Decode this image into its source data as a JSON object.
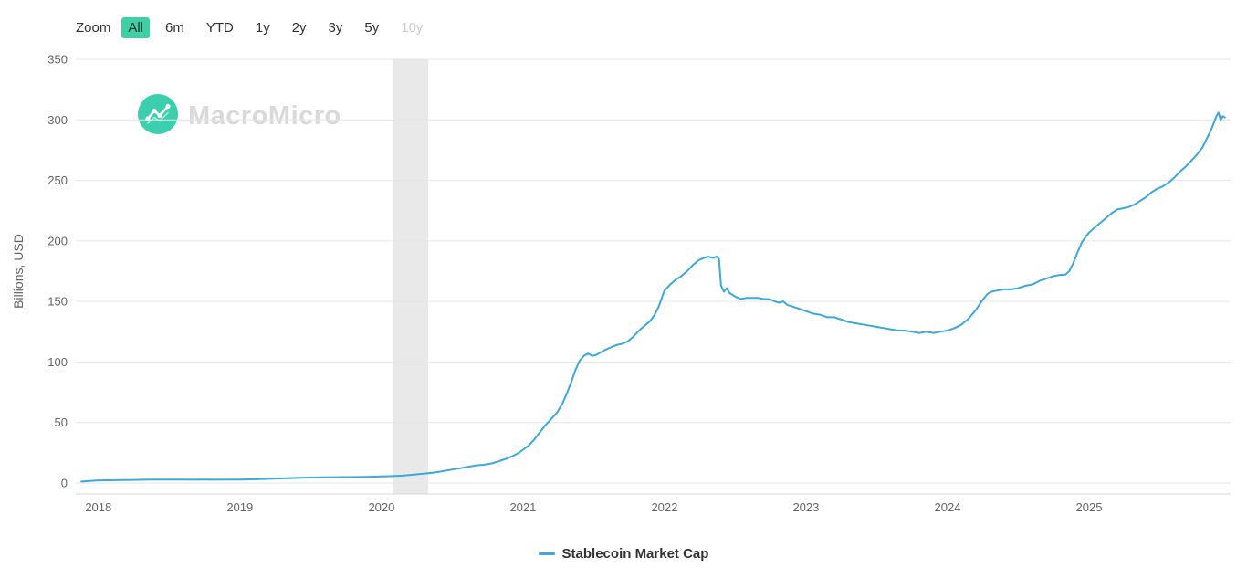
{
  "toolbar": {
    "zoom_label": "Zoom",
    "buttons": [
      {
        "label": "All",
        "state": "selected"
      },
      {
        "label": "6m",
        "state": "normal"
      },
      {
        "label": "YTD",
        "state": "normal"
      },
      {
        "label": "1y",
        "state": "normal"
      },
      {
        "label": "2y",
        "state": "normal"
      },
      {
        "label": "3y",
        "state": "normal"
      },
      {
        "label": "5y",
        "state": "normal"
      },
      {
        "label": "10y",
        "state": "disabled"
      }
    ],
    "selected_button_color": "#3ed0a4"
  },
  "watermark": {
    "brand": "MacroMicro",
    "logo_color": "#3bcfad",
    "text_color": "#d9d9d9"
  },
  "chart_data": {
    "type": "line",
    "title": "",
    "xlabel": "",
    "ylabel": "Billions, USD",
    "xticks": [
      2018,
      2019,
      2020,
      2021,
      2022,
      2023,
      2024,
      2025
    ],
    "yticks": [
      0,
      50,
      100,
      150,
      200,
      250,
      300,
      350
    ],
    "xlim": [
      2017.84,
      2026.0
    ],
    "ylim": [
      0,
      350
    ],
    "grid": true,
    "grid_color": "#e6e6e6",
    "axis_line_color": "#d8d8d8",
    "tick_label_color": "#666666",
    "legend_position": "bottom-center",
    "band": {
      "from": 2020.08,
      "to": 2020.33,
      "color": "#e9e9e9",
      "note": "recession-shading"
    },
    "series": [
      {
        "name": "Stablecoin Market Cap",
        "color": "#3ca8dc",
        "points": [
          [
            2017.88,
            1.2
          ],
          [
            2018.0,
            2.2
          ],
          [
            2018.08,
            2.3
          ],
          [
            2018.17,
            2.4
          ],
          [
            2018.25,
            2.6
          ],
          [
            2018.33,
            2.7
          ],
          [
            2018.42,
            2.8
          ],
          [
            2018.5,
            2.8
          ],
          [
            2018.58,
            2.8
          ],
          [
            2018.67,
            2.7
          ],
          [
            2018.75,
            2.8
          ],
          [
            2018.83,
            2.7
          ],
          [
            2018.92,
            2.8
          ],
          [
            2019.0,
            2.8
          ],
          [
            2019.08,
            3.0
          ],
          [
            2019.17,
            3.3
          ],
          [
            2019.25,
            3.7
          ],
          [
            2019.33,
            4.0
          ],
          [
            2019.42,
            4.3
          ],
          [
            2019.5,
            4.5
          ],
          [
            2019.58,
            4.7
          ],
          [
            2019.67,
            4.8
          ],
          [
            2019.75,
            4.9
          ],
          [
            2019.83,
            5.0
          ],
          [
            2019.92,
            5.2
          ],
          [
            2020.0,
            5.4
          ],
          [
            2020.08,
            5.7
          ],
          [
            2020.15,
            6.1
          ],
          [
            2020.22,
            6.9
          ],
          [
            2020.3,
            7.7
          ],
          [
            2020.36,
            8.5
          ],
          [
            2020.42,
            9.5
          ],
          [
            2020.5,
            11.2
          ],
          [
            2020.56,
            12.3
          ],
          [
            2020.62,
            13.6
          ],
          [
            2020.67,
            14.6
          ],
          [
            2020.72,
            15.1
          ],
          [
            2020.78,
            16.2
          ],
          [
            2020.83,
            18.0
          ],
          [
            2020.88,
            20.0
          ],
          [
            2020.93,
            22.5
          ],
          [
            2020.97,
            25.0
          ],
          [
            2021.0,
            27.5
          ],
          [
            2021.04,
            31
          ],
          [
            2021.08,
            36
          ],
          [
            2021.12,
            42
          ],
          [
            2021.16,
            48
          ],
          [
            2021.2,
            53
          ],
          [
            2021.24,
            58
          ],
          [
            2021.28,
            66
          ],
          [
            2021.31,
            74
          ],
          [
            2021.34,
            83
          ],
          [
            2021.37,
            93
          ],
          [
            2021.4,
            101
          ],
          [
            2021.43,
            105
          ],
          [
            2021.46,
            107
          ],
          [
            2021.49,
            105
          ],
          [
            2021.52,
            106
          ],
          [
            2021.55,
            108
          ],
          [
            2021.58,
            110
          ],
          [
            2021.62,
            112
          ],
          [
            2021.66,
            114
          ],
          [
            2021.7,
            115
          ],
          [
            2021.74,
            117
          ],
          [
            2021.78,
            121
          ],
          [
            2021.82,
            126
          ],
          [
            2021.86,
            130
          ],
          [
            2021.9,
            134
          ],
          [
            2021.93,
            139
          ],
          [
            2021.96,
            146
          ],
          [
            2022.0,
            159
          ],
          [
            2022.04,
            164
          ],
          [
            2022.08,
            168
          ],
          [
            2022.12,
            171
          ],
          [
            2022.16,
            175
          ],
          [
            2022.2,
            180
          ],
          [
            2022.24,
            184
          ],
          [
            2022.28,
            186
          ],
          [
            2022.31,
            187
          ],
          [
            2022.34,
            186
          ],
          [
            2022.37,
            187
          ],
          [
            2022.385,
            185
          ],
          [
            2022.4,
            163
          ],
          [
            2022.42,
            158
          ],
          [
            2022.44,
            161
          ],
          [
            2022.46,
            157
          ],
          [
            2022.5,
            154
          ],
          [
            2022.54,
            152
          ],
          [
            2022.58,
            153
          ],
          [
            2022.62,
            153
          ],
          [
            2022.66,
            153
          ],
          [
            2022.7,
            152
          ],
          [
            2022.74,
            152
          ],
          [
            2022.78,
            150
          ],
          [
            2022.81,
            149
          ],
          [
            2022.84,
            150
          ],
          [
            2022.87,
            147
          ],
          [
            2022.9,
            146
          ],
          [
            2022.95,
            144
          ],
          [
            2023.0,
            142
          ],
          [
            2023.05,
            140
          ],
          [
            2023.1,
            139
          ],
          [
            2023.15,
            137
          ],
          [
            2023.2,
            137
          ],
          [
            2023.25,
            135
          ],
          [
            2023.3,
            133
          ],
          [
            2023.35,
            132
          ],
          [
            2023.4,
            131
          ],
          [
            2023.45,
            130
          ],
          [
            2023.5,
            129
          ],
          [
            2023.55,
            128
          ],
          [
            2023.6,
            127
          ],
          [
            2023.65,
            126
          ],
          [
            2023.7,
            126
          ],
          [
            2023.75,
            125
          ],
          [
            2023.8,
            124
          ],
          [
            2023.85,
            125
          ],
          [
            2023.9,
            124
          ],
          [
            2023.95,
            125
          ],
          [
            2024.0,
            126
          ],
          [
            2024.05,
            128
          ],
          [
            2024.1,
            131
          ],
          [
            2024.15,
            136
          ],
          [
            2024.2,
            143
          ],
          [
            2024.24,
            150
          ],
          [
            2024.28,
            156
          ],
          [
            2024.31,
            158
          ],
          [
            2024.35,
            159
          ],
          [
            2024.4,
            160
          ],
          [
            2024.45,
            160
          ],
          [
            2024.5,
            161
          ],
          [
            2024.55,
            163
          ],
          [
            2024.6,
            164
          ],
          [
            2024.65,
            167
          ],
          [
            2024.7,
            169
          ],
          [
            2024.75,
            171
          ],
          [
            2024.8,
            172
          ],
          [
            2024.83,
            172
          ],
          [
            2024.86,
            175
          ],
          [
            2024.89,
            182
          ],
          [
            2024.92,
            191
          ],
          [
            2024.95,
            199
          ],
          [
            2024.98,
            204
          ],
          [
            2025.0,
            207
          ],
          [
            2025.04,
            211
          ],
          [
            2025.08,
            215
          ],
          [
            2025.12,
            219
          ],
          [
            2025.16,
            223
          ],
          [
            2025.2,
            226
          ],
          [
            2025.24,
            227
          ],
          [
            2025.28,
            228
          ],
          [
            2025.32,
            230
          ],
          [
            2025.36,
            233
          ],
          [
            2025.4,
            236
          ],
          [
            2025.44,
            240
          ],
          [
            2025.48,
            243
          ],
          [
            2025.52,
            245
          ],
          [
            2025.56,
            248
          ],
          [
            2025.6,
            252
          ],
          [
            2025.64,
            257
          ],
          [
            2025.68,
            261
          ],
          [
            2025.72,
            266
          ],
          [
            2025.76,
            271
          ],
          [
            2025.8,
            277
          ],
          [
            2025.83,
            284
          ],
          [
            2025.86,
            291
          ],
          [
            2025.88,
            297
          ],
          [
            2025.9,
            303
          ],
          [
            2025.915,
            306
          ],
          [
            2025.93,
            300
          ],
          [
            2025.945,
            303
          ],
          [
            2025.96,
            302
          ]
        ]
      }
    ]
  },
  "legend": {
    "items": [
      {
        "label": "Stablecoin Market Cap",
        "color": "#3ca8dc"
      }
    ]
  }
}
